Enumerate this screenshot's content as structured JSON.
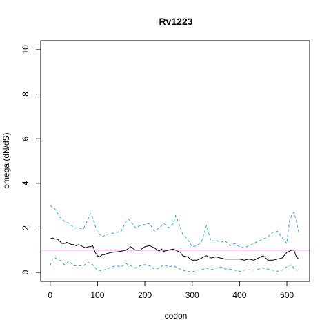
{
  "chart_data": {
    "type": "line",
    "title": "Rv1223",
    "xlabel": "codon",
    "ylabel": "omega (dN/dS)",
    "xlim": [
      -20,
      548
    ],
    "ylim": [
      -0.4,
      10.4
    ],
    "x_ticks": [
      0,
      100,
      200,
      300,
      400,
      500
    ],
    "y_ticks": [
      0,
      2,
      4,
      6,
      8,
      10
    ],
    "reference_line": {
      "y": 1,
      "color": "#cc66cc"
    },
    "colors": {
      "estimate": "#000000",
      "interval": "#29a3e6"
    },
    "series": [
      {
        "style": "solid",
        "x": [
          0,
          5,
          10,
          15,
          20,
          25,
          30,
          35,
          40,
          45,
          50,
          55,
          60,
          65,
          70,
          75,
          80,
          85,
          90,
          95,
          100,
          105,
          110,
          115,
          120,
          130,
          140,
          150,
          160,
          170,
          180,
          190,
          200,
          210,
          220,
          230,
          235,
          240,
          250,
          260,
          265,
          270,
          275,
          280,
          290,
          300,
          310,
          320,
          330,
          340,
          350,
          360,
          370,
          380,
          390,
          400,
          410,
          420,
          430,
          440,
          450,
          460,
          470,
          480,
          490,
          500,
          505,
          510,
          515,
          520,
          525
        ],
        "values": [
          1.5,
          1.55,
          1.5,
          1.5,
          1.4,
          1.3,
          1.3,
          1.35,
          1.3,
          1.25,
          1.25,
          1.2,
          1.25,
          1.2,
          1.15,
          1.1,
          1.15,
          1.15,
          1.2,
          0.9,
          0.75,
          0.7,
          0.8,
          0.8,
          0.85,
          0.9,
          0.92,
          0.95,
          1.0,
          1.15,
          1.0,
          1.0,
          1.15,
          1.2,
          1.1,
          0.95,
          1.05,
          0.95,
          1.0,
          1.05,
          1.0,
          0.95,
          0.9,
          0.75,
          0.7,
          0.55,
          0.55,
          0.65,
          0.75,
          0.65,
          0.7,
          0.65,
          0.6,
          0.6,
          0.6,
          0.6,
          0.55,
          0.6,
          0.55,
          0.65,
          0.75,
          0.55,
          0.55,
          0.6,
          0.65,
          0.9,
          0.95,
          1.0,
          1.0,
          0.7,
          0.6
        ]
      },
      {
        "style": "dashed",
        "x": [
          0,
          10,
          20,
          30,
          40,
          50,
          60,
          70,
          80,
          85,
          90,
          95,
          100,
          110,
          120,
          130,
          140,
          150,
          160,
          165,
          170,
          180,
          190,
          200,
          210,
          220,
          230,
          240,
          250,
          260,
          265,
          270,
          280,
          290,
          300,
          310,
          320,
          330,
          340,
          350,
          360,
          370,
          380,
          390,
          400,
          410,
          420,
          430,
          440,
          450,
          460,
          470,
          480,
          490,
          500,
          505,
          510,
          515,
          520,
          525
        ],
        "values": [
          3.0,
          2.85,
          2.5,
          2.3,
          2.2,
          2.0,
          2.0,
          1.95,
          2.4,
          2.65,
          2.45,
          2.1,
          1.8,
          1.6,
          1.7,
          1.75,
          1.8,
          1.85,
          2.3,
          2.4,
          2.3,
          2.0,
          2.1,
          2.15,
          2.2,
          1.85,
          2.0,
          2.2,
          2.0,
          2.2,
          2.55,
          2.3,
          1.7,
          1.5,
          1.15,
          1.2,
          1.4,
          2.1,
          1.4,
          1.45,
          1.35,
          1.4,
          1.2,
          1.3,
          1.15,
          1.1,
          1.2,
          1.3,
          1.4,
          1.5,
          1.6,
          1.8,
          1.85,
          1.55,
          1.3,
          2.3,
          2.55,
          2.7,
          2.3,
          1.8
        ]
      },
      {
        "style": "dashed",
        "x": [
          0,
          5,
          10,
          20,
          30,
          40,
          50,
          60,
          70,
          80,
          90,
          100,
          110,
          120,
          130,
          140,
          150,
          160,
          170,
          180,
          190,
          200,
          210,
          220,
          230,
          240,
          250,
          260,
          270,
          280,
          290,
          300,
          310,
          320,
          330,
          340,
          350,
          360,
          370,
          380,
          390,
          400,
          410,
          420,
          430,
          440,
          450,
          460,
          470,
          480,
          490,
          500,
          505,
          510,
          515,
          520,
          525
        ],
        "values": [
          0.3,
          0.6,
          0.65,
          0.55,
          0.35,
          0.5,
          0.3,
          0.3,
          0.3,
          0.45,
          0.35,
          0.1,
          0.08,
          0.15,
          0.25,
          0.3,
          0.25,
          0.4,
          0.3,
          0.2,
          0.3,
          0.35,
          0.3,
          0.15,
          0.2,
          0.35,
          0.25,
          0.3,
          0.2,
          0.1,
          0.05,
          0.02,
          0.1,
          0.12,
          0.2,
          0.12,
          0.2,
          0.25,
          0.15,
          0.15,
          0.1,
          0.05,
          0.1,
          0.12,
          0.1,
          0.15,
          0.2,
          0.15,
          0.1,
          0.05,
          0.1,
          0.25,
          0.3,
          0.35,
          0.15,
          0.1,
          0.1
        ]
      }
    ]
  }
}
